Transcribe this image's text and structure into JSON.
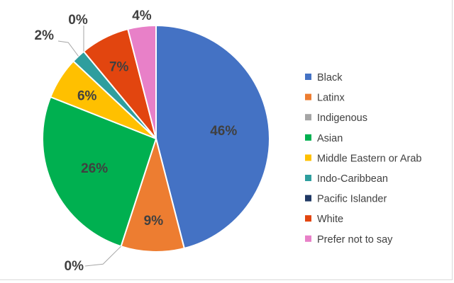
{
  "chart_data": {
    "type": "pie",
    "categories": [
      "Black",
      "Latinx",
      "Indigenous",
      "Asian",
      "Middle Eastern or Arab",
      "Indo-Caribbean",
      "Pacific Islander",
      "White",
      "Prefer not to say"
    ],
    "values": [
      46,
      9,
      0,
      26,
      6,
      2,
      0,
      7,
      4
    ],
    "labels": [
      "46%",
      "9%",
      "0%",
      "26%",
      "6%",
      "2%",
      "0%",
      "7%",
      "4%"
    ],
    "colors": [
      "#4472C4",
      "#ED7D31",
      "#A5A5A5",
      "#00B050",
      "#FFC000",
      "#2E9E9E",
      "#1F3864",
      "#E2450F",
      "#E880C8"
    ],
    "legend_position": "right",
    "title": ""
  }
}
